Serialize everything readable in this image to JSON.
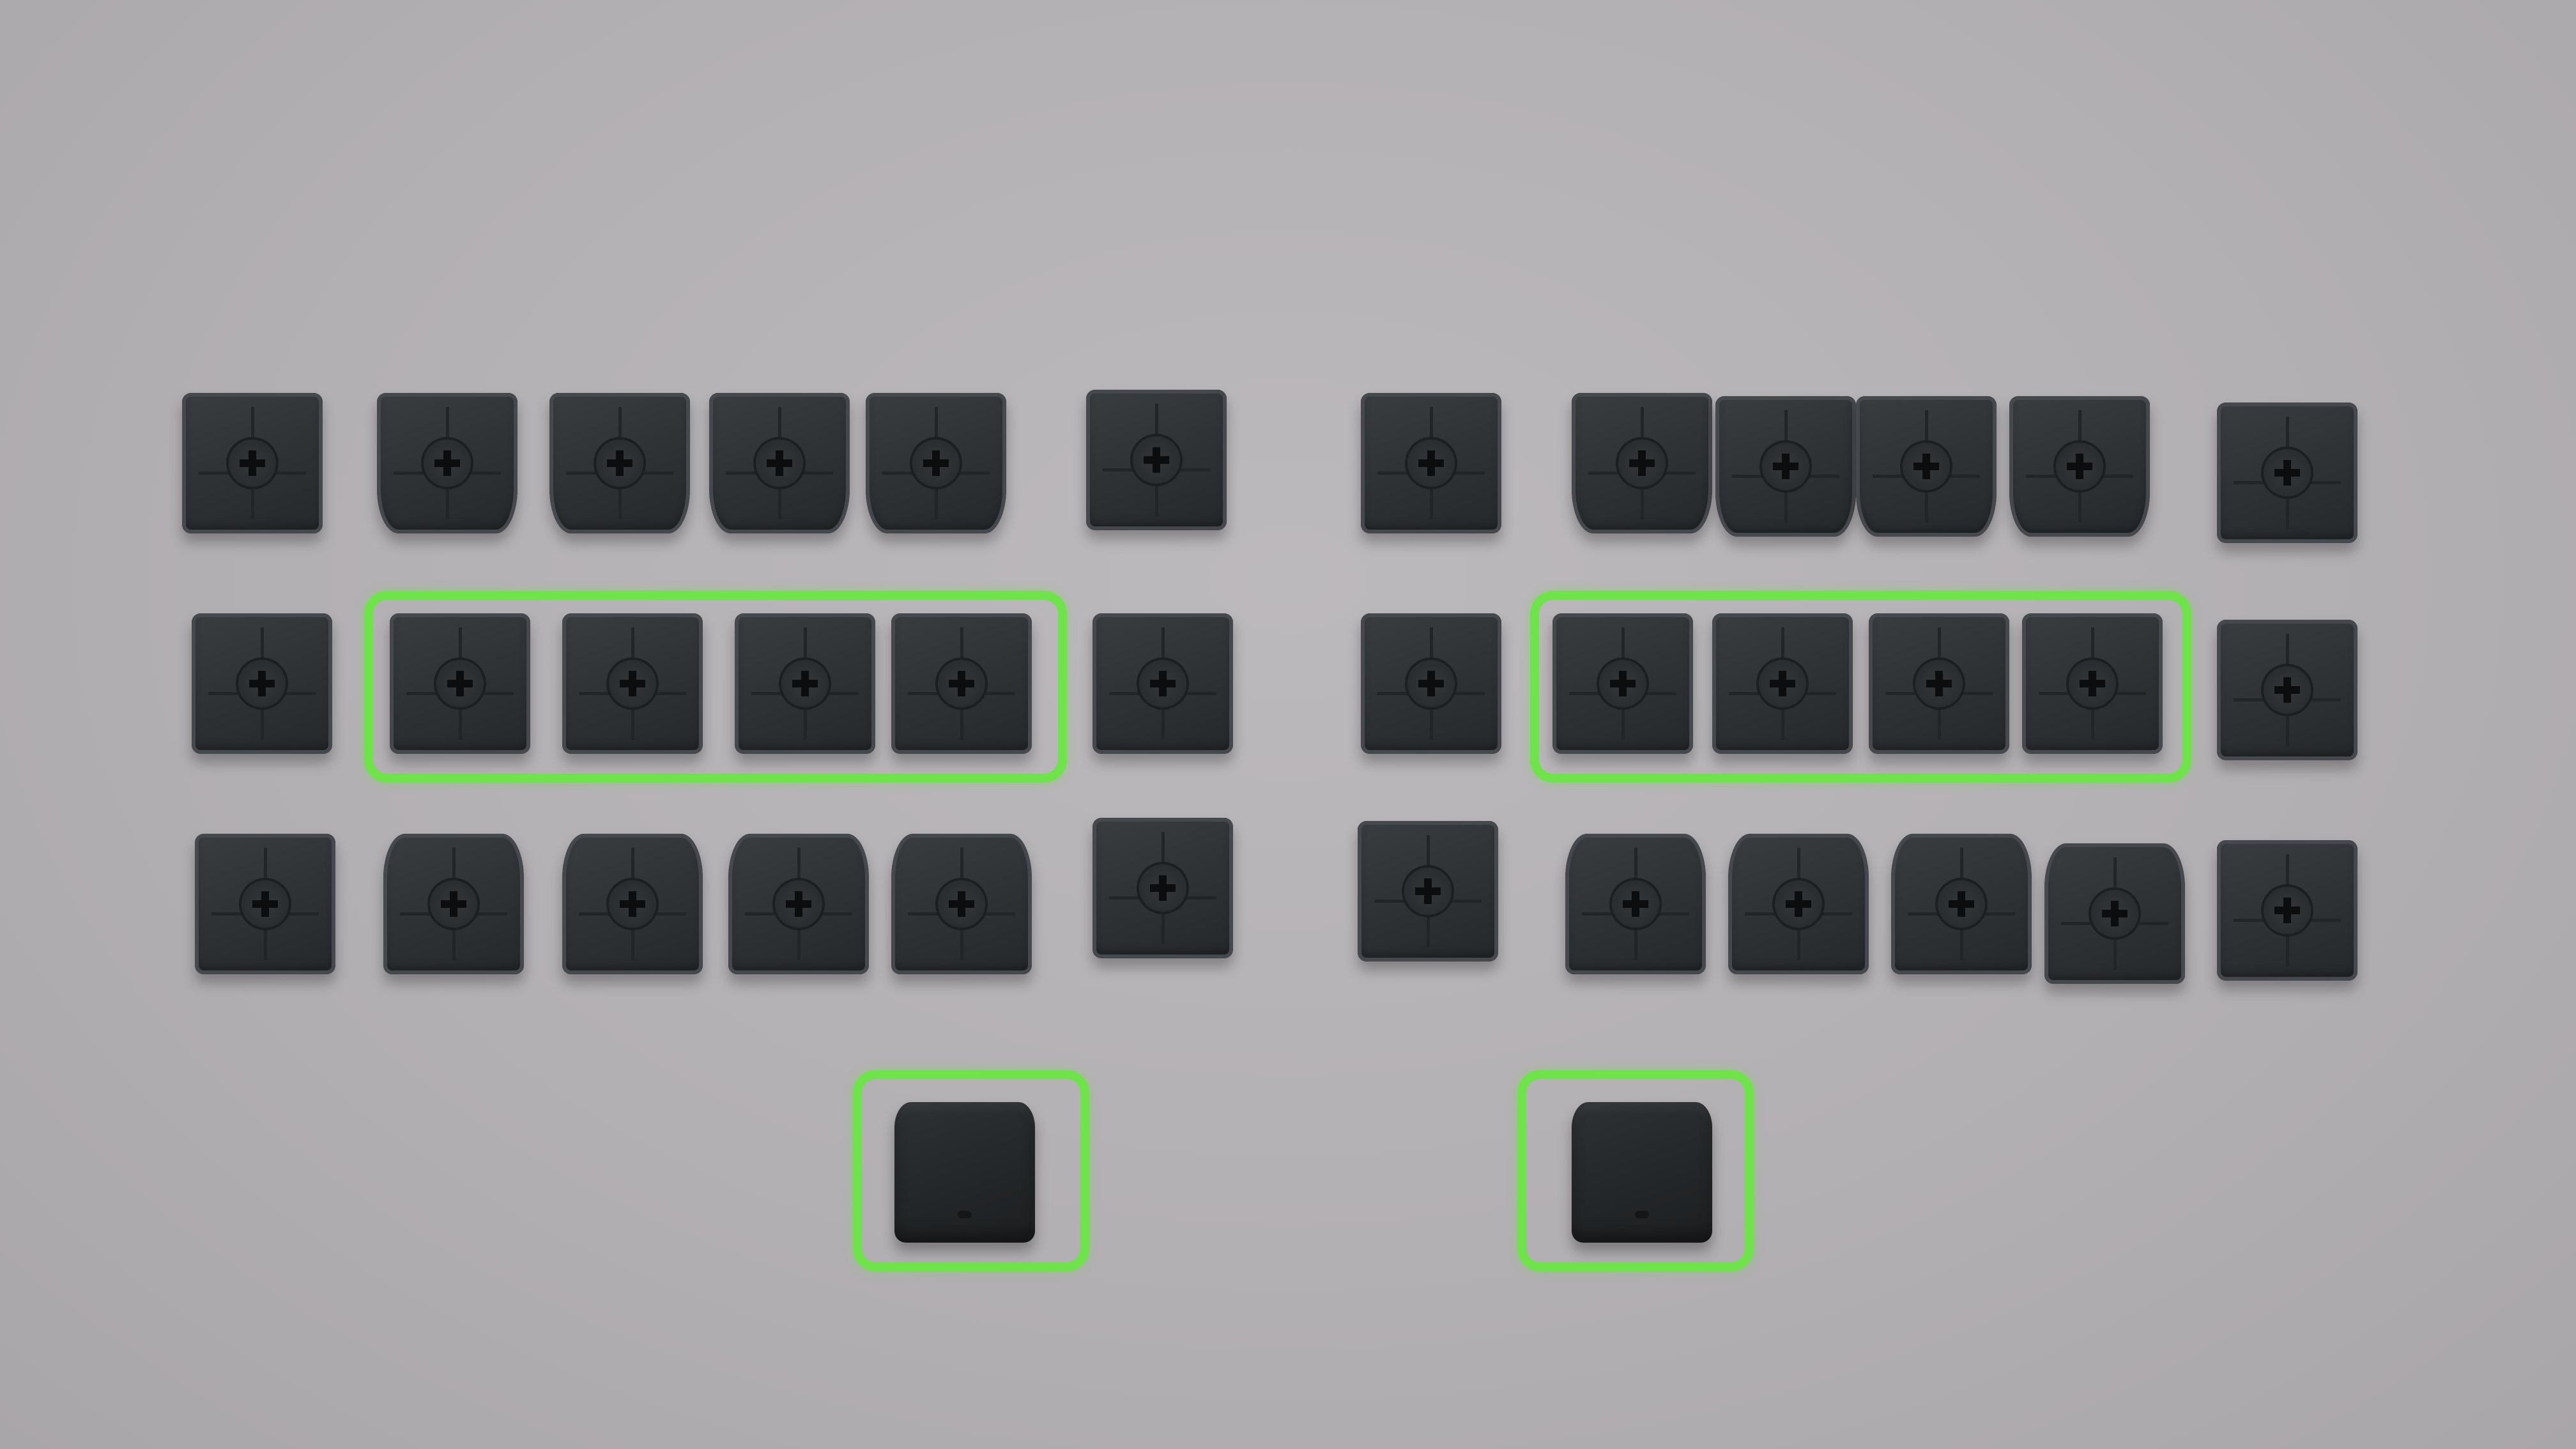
{
  "colors": {
    "background": "#b6b3b6",
    "keycap": "#2f3235",
    "highlight": "#6fe34a"
  },
  "scene": {
    "rows": [
      {
        "name": "top-row",
        "left_keys": 6,
        "right_keys": 6
      },
      {
        "name": "home-row",
        "left_keys": 6,
        "right_keys": 6
      },
      {
        "name": "bottom-row",
        "left_keys": 6,
        "right_keys": 6
      },
      {
        "name": "thumb-row",
        "left_keys": 1,
        "right_keys": 1
      }
    ],
    "highlighted_groups": [
      {
        "name": "left-home-row-group",
        "keys": 4
      },
      {
        "name": "right-home-row-group",
        "keys": 4
      },
      {
        "name": "left-thumb-group",
        "keys": 1
      },
      {
        "name": "right-thumb-group",
        "keys": 1
      }
    ]
  }
}
